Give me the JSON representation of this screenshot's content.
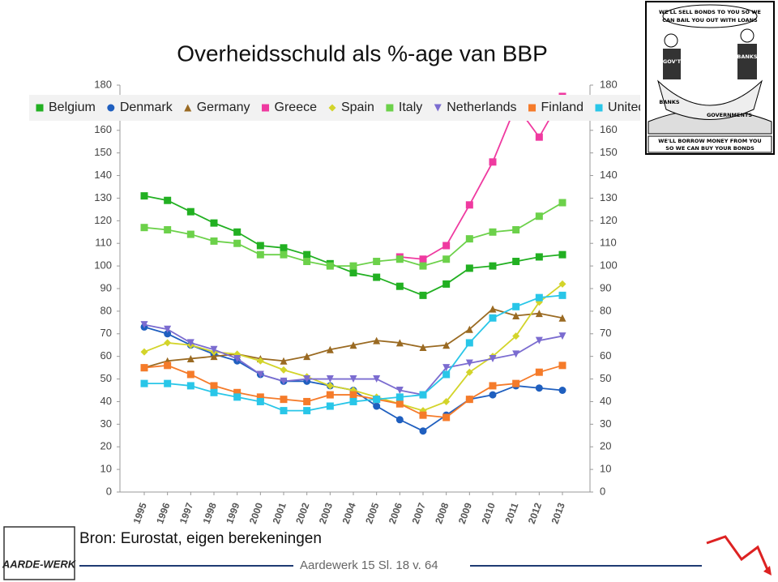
{
  "chart_data": {
    "type": "line",
    "title": "Overheidsschuld als %-age van BBP",
    "categories": [
      "1995",
      "1996",
      "1997",
      "1998",
      "1999",
      "2000",
      "2001",
      "2002",
      "2003",
      "2004",
      "2005",
      "2006",
      "2007",
      "2008",
      "2009",
      "2010",
      "2011",
      "2012",
      "2013"
    ],
    "series": [
      {
        "name": "Belgium",
        "color": "#22b022",
        "marker": "square",
        "values": [
          131,
          129,
          124,
          119,
          115,
          109,
          108,
          105,
          101,
          97,
          95,
          91,
          87,
          92,
          99,
          100,
          102,
          104,
          105
        ]
      },
      {
        "name": "Denmark",
        "color": "#1f5fbf",
        "marker": "circle",
        "values": [
          73,
          70,
          65,
          61,
          58,
          52,
          49,
          49,
          47,
          45,
          38,
          32,
          27,
          34,
          41,
          43,
          47,
          46,
          45
        ]
      },
      {
        "name": "Germany",
        "color": "#9a6a22",
        "marker": "triangle",
        "values": [
          55,
          58,
          59,
          60,
          61,
          59,
          58,
          60,
          63,
          65,
          67,
          66,
          64,
          65,
          72,
          81,
          78,
          79,
          77
        ]
      },
      {
        "name": "Greece",
        "color": "#ef3aa0",
        "marker": "square",
        "values": [
          null,
          null,
          null,
          null,
          null,
          null,
          null,
          null,
          null,
          null,
          null,
          104,
          103,
          109,
          127,
          146,
          171,
          157,
          175
        ]
      },
      {
        "name": "Spain",
        "color": "#d3d42a",
        "marker": "diamond",
        "values": [
          62,
          66,
          65,
          62,
          61,
          58,
          54,
          51,
          47,
          45,
          42,
          39,
          36,
          40,
          53,
          60,
          69,
          84,
          92
        ]
      },
      {
        "name": "Italy",
        "color": "#6cd14a",
        "marker": "square",
        "values": [
          117,
          116,
          114,
          111,
          110,
          105,
          105,
          102,
          100,
          100,
          102,
          103,
          100,
          103,
          112,
          115,
          116,
          122,
          128
        ]
      },
      {
        "name": "Netherlands",
        "color": "#7b6cd0",
        "marker": "triangle-down",
        "values": [
          74,
          72,
          66,
          63,
          59,
          52,
          49,
          50,
          50,
          50,
          50,
          45,
          43,
          55,
          57,
          59,
          61,
          67,
          69
        ]
      },
      {
        "name": "Finland",
        "color": "#f57b2a",
        "marker": "square",
        "values": [
          55,
          56,
          52,
          47,
          44,
          42,
          41,
          40,
          43,
          43,
          41,
          39,
          34,
          33,
          41,
          47,
          48,
          53,
          56
        ]
      },
      {
        "name": "United",
        "color": "#29c6e8",
        "marker": "square",
        "values": [
          48,
          48,
          47,
          44,
          42,
          40,
          36,
          36,
          38,
          40,
          41,
          42,
          43,
          52,
          66,
          77,
          82,
          86,
          87
        ]
      }
    ],
    "ylim": [
      0,
      180
    ],
    "yticks": [
      0,
      10,
      20,
      30,
      40,
      50,
      60,
      70,
      80,
      90,
      100,
      110,
      120,
      130,
      140,
      150,
      160,
      170,
      180
    ],
    "y2lim": [
      0,
      180
    ],
    "y2ticks": [
      0,
      10,
      20,
      30,
      40,
      50,
      60,
      70,
      80,
      90,
      100,
      110,
      120,
      130,
      140,
      150,
      160,
      170,
      180
    ],
    "grid": false,
    "legend": "top"
  },
  "slide": {
    "source": "Bron: Eurostat, eigen berekeningen",
    "footer": "Aardewerk 15  Sl. 18 v. 64",
    "logo": "AARDE-WERK",
    "cartoon": {
      "top": [
        "WE'LL SELL BONDS TO YOU SO WE",
        "CAN BAIL YOU OUT WITH LOANS"
      ],
      "bottom": [
        "WE'LL BORROW MONEY FROM YOU",
        "SO WE CAN BUY YOUR BONDS"
      ],
      "labels": [
        "GOV'T",
        "BANKS",
        "BANKS",
        "GOVERNMENTS"
      ]
    }
  }
}
